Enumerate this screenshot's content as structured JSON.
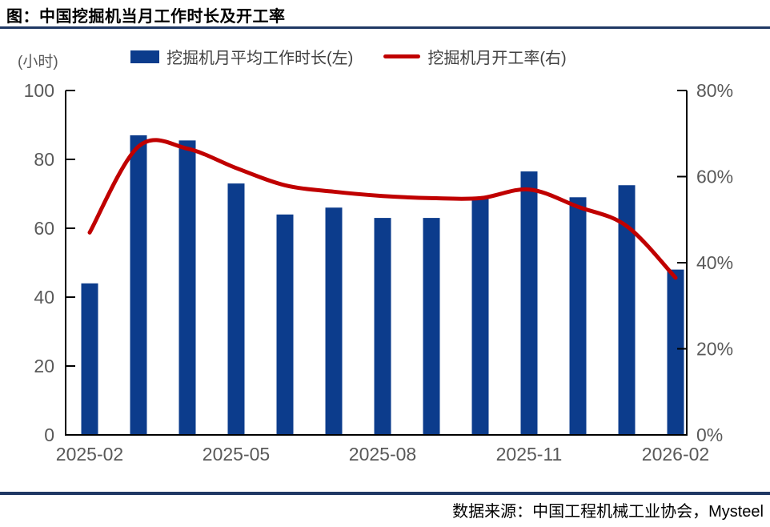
{
  "header": {
    "title": "图：中国挖掘机当月工作时长及开工率"
  },
  "unit_label": "(小时)",
  "legend": [
    {
      "label": "挖掘机月平均工作时长(左)",
      "type": "bar",
      "color": "#0c3c8c"
    },
    {
      "label": "挖掘机月开工率(右)",
      "type": "line",
      "color": "#c00000"
    }
  ],
  "footer": {
    "source": "数据来源：中国工程机械工业协会，Mysteel"
  },
  "colors": {
    "bar": "#0c3c8c",
    "line": "#c00000",
    "rule": "#1f3864",
    "axis": "#000000",
    "tick_label": "#595959"
  },
  "chart_data": {
    "type": "bar",
    "title": "图：中国挖掘机当月工作时长及开工率",
    "categories": [
      "2025-02",
      "2025-03",
      "2025-04",
      "2025-05",
      "2025-06",
      "2025-07",
      "2025-08",
      "2025-09",
      "2025-10",
      "2025-11",
      "2025-12",
      "2026-01",
      "2026-02"
    ],
    "series": [
      {
        "name": "挖掘机月平均工作时长(左)",
        "type": "bar",
        "axis": "left",
        "values": [
          44,
          87,
          85.5,
          73,
          64,
          66,
          63,
          63,
          68.5,
          76.5,
          69,
          72.5,
          48
        ]
      },
      {
        "name": "挖掘机月开工率(右)",
        "type": "line",
        "axis": "right",
        "values": [
          47,
          67,
          66.5,
          62,
          58,
          56.5,
          55.5,
          55,
          55,
          57,
          53,
          48.5,
          36.5
        ]
      }
    ],
    "left_axis": {
      "label": "(小时)",
      "range": [
        0,
        100
      ],
      "ticks": [
        0,
        20,
        40,
        60,
        80,
        100
      ]
    },
    "right_axis": {
      "label": "%",
      "range": [
        0,
        80
      ],
      "ticks": [
        0,
        20,
        40,
        60,
        80
      ],
      "tick_labels": [
        "0%",
        "20%",
        "40%",
        "60%",
        "80%"
      ]
    },
    "x_tick_labels": [
      "2025-02",
      "2025-05",
      "2025-08",
      "2025-11",
      "2026-02"
    ],
    "x_tick_indices": [
      0,
      3,
      6,
      9,
      12
    ],
    "grid": false,
    "legend_position": "top"
  }
}
